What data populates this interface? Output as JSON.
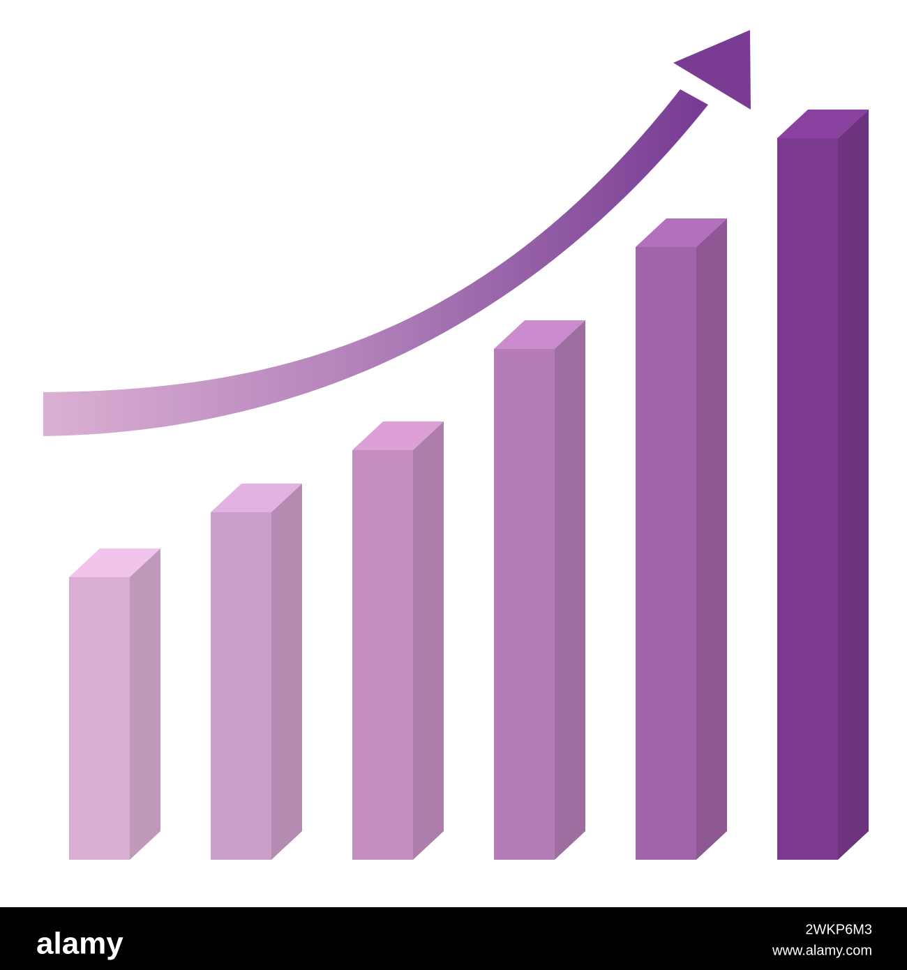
{
  "chart_data": {
    "type": "bar",
    "categories": [
      null,
      null,
      null,
      null,
      null,
      null
    ],
    "values": [
      405,
      498,
      587,
      732,
      878,
      1034
    ],
    "colors": [
      "#d8aed2",
      "#cc9fca",
      "#c48fc0",
      "#b47db7",
      "#a064a8",
      "#7b3a8f"
    ],
    "ylim": [
      0,
      1034
    ]
  },
  "footer": {
    "logo": "alamy",
    "image_id": "2WKP6M3",
    "url": "www.alamy.com"
  }
}
